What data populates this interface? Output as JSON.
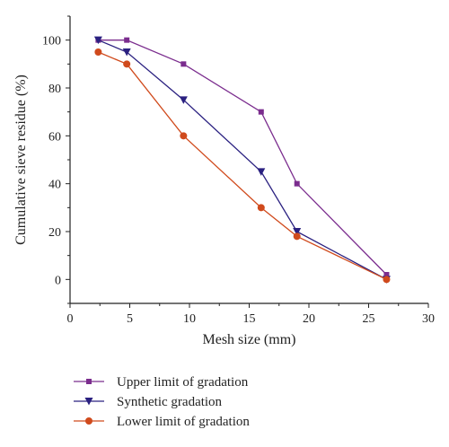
{
  "chart_data": {
    "type": "line",
    "xlabel": "Mesh size (mm)",
    "ylabel": "Cumulative sieve residue (%)",
    "xlim": [
      0,
      30
    ],
    "ylim": [
      -10,
      110
    ],
    "xticks": [
      0,
      5,
      10,
      15,
      20,
      25,
      30
    ],
    "yticks": [
      0,
      20,
      40,
      60,
      80,
      100
    ],
    "grid": false,
    "legend_position": "bottom",
    "series": [
      {
        "name": "Upper limit of gradation",
        "color": "#7b2d8e",
        "marker": "square",
        "x": [
          2.36,
          4.75,
          9.5,
          16,
          19,
          26.5
        ],
        "y": [
          100,
          100,
          90,
          70,
          40,
          2
        ]
      },
      {
        "name": "Synthetic gradation",
        "color": "#2a2080",
        "marker": "triangle-down",
        "x": [
          2.36,
          4.75,
          9.5,
          16,
          19,
          26.5
        ],
        "y": [
          100,
          95,
          75,
          45,
          20,
          0
        ]
      },
      {
        "name": "Lower limit of gradation",
        "color": "#d04a1c",
        "marker": "circle",
        "x": [
          2.36,
          4.75,
          9.5,
          16,
          19,
          26.5
        ],
        "y": [
          95,
          90,
          60,
          30,
          18,
          0
        ]
      }
    ]
  }
}
